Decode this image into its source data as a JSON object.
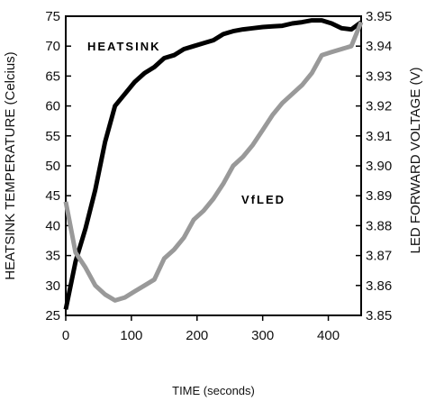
{
  "chart_data": {
    "type": "line",
    "xlabel": "TIME (seconds)",
    "ylabel_left": "HEATSINK TEMPERATURE (Celcius)",
    "ylabel_right": "LED FORWARD VOLTAGE (V)",
    "xlim": [
      0,
      450
    ],
    "ylim_left": [
      25,
      75
    ],
    "ylim_right": [
      3.85,
      3.95
    ],
    "xticks": [
      "0",
      "100",
      "200",
      "300",
      "400"
    ],
    "yticks_left": [
      "25",
      "30",
      "35",
      "40",
      "45",
      "50",
      "55",
      "60",
      "65",
      "70",
      "75"
    ],
    "yticks_right": [
      "3.85",
      "3.86",
      "3.87",
      "3.88",
      "3.89",
      "3.90",
      "3.91",
      "3.92",
      "3.93",
      "3.94",
      "3.95"
    ],
    "grid": false,
    "series": [
      {
        "name": "HEATSINK",
        "axis": "left",
        "color": "#000000",
        "x": [
          0,
          15,
          30,
          45,
          60,
          75,
          90,
          105,
          120,
          135,
          150,
          165,
          180,
          195,
          210,
          225,
          240,
          255,
          270,
          285,
          300,
          315,
          330,
          345,
          360,
          375,
          390,
          405,
          420,
          435,
          450
        ],
        "y": [
          26,
          34,
          39.5,
          46,
          54,
          60,
          62,
          64,
          65.5,
          66.5,
          68,
          68.5,
          69.5,
          70,
          70.5,
          71,
          72,
          72.5,
          72.8,
          73,
          73.2,
          73.3,
          73.4,
          73.8,
          74,
          74.3,
          74.3,
          73.8,
          73,
          72.8,
          74
        ]
      },
      {
        "name": "VfLED",
        "axis": "right",
        "color": "#999999",
        "x": [
          0,
          15,
          30,
          45,
          60,
          75,
          90,
          105,
          120,
          135,
          150,
          165,
          180,
          195,
          210,
          225,
          240,
          255,
          270,
          285,
          300,
          315,
          330,
          345,
          360,
          375,
          390,
          405,
          420,
          435,
          450
        ],
        "y": [
          3.888,
          3.871,
          3.866,
          3.86,
          3.857,
          3.855,
          3.856,
          3.858,
          3.86,
          3.862,
          3.869,
          3.872,
          3.876,
          3.882,
          3.885,
          3.889,
          3.894,
          3.9,
          3.903,
          3.907,
          3.912,
          3.917,
          3.921,
          3.924,
          3.927,
          3.931,
          3.937,
          3.938,
          3.939,
          3.94,
          3.948
        ]
      }
    ]
  }
}
